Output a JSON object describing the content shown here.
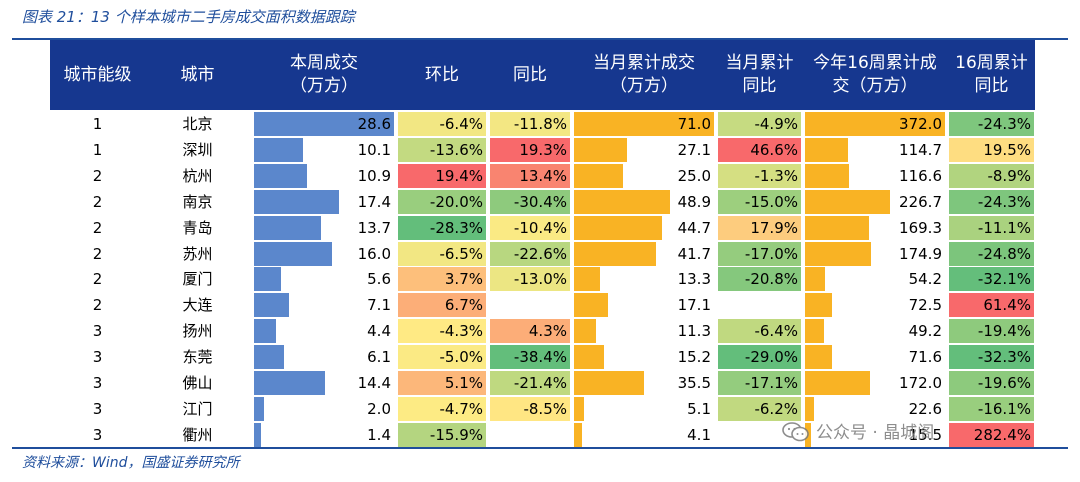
{
  "figure": {
    "title": "图表 21：13 个样本城市二手房成交面积数据跟踪",
    "source": "资料来源：Wind，国盛证券研究所",
    "watermark": "公众号 · 晶城阁"
  },
  "colors": {
    "header_bg": "#16378f",
    "rule": "#1f4e9c",
    "blue_bar": "#5b87cc",
    "orange_bar": "#f9b324",
    "heat_low": "#63be7b",
    "heat_mid": "#ffeb84",
    "heat_high": "#f8696b"
  },
  "chart_data": {
    "type": "table",
    "columns": [
      "城市能级",
      "城市",
      "本周成交\n（万方）",
      "环比",
      "同比",
      "当月累计成交\n（万方）",
      "当月累计\n同比",
      "今年16周累计成\n交（万方）",
      "16周累计\n同比"
    ],
    "rows": [
      {
        "tier": "1",
        "city": "北京",
        "week": "28.6",
        "wow": "-6.4%",
        "yoy": "-11.8%",
        "month": "71.0",
        "month_yoy": "-4.9%",
        "ytd": "372.0",
        "ytd_yoy": "-24.3%"
      },
      {
        "tier": "1",
        "city": "深圳",
        "week": "10.1",
        "wow": "-13.6%",
        "yoy": "19.3%",
        "month": "27.1",
        "month_yoy": "46.6%",
        "ytd": "114.7",
        "ytd_yoy": "19.5%"
      },
      {
        "tier": "2",
        "city": "杭州",
        "week": "10.9",
        "wow": "19.4%",
        "yoy": "13.4%",
        "month": "25.0",
        "month_yoy": "-1.3%",
        "ytd": "116.6",
        "ytd_yoy": "-8.9%"
      },
      {
        "tier": "2",
        "city": "南京",
        "week": "17.4",
        "wow": "-20.0%",
        "yoy": "-30.4%",
        "month": "48.9",
        "month_yoy": "-15.0%",
        "ytd": "226.7",
        "ytd_yoy": "-24.3%"
      },
      {
        "tier": "2",
        "city": "青岛",
        "week": "13.7",
        "wow": "-28.3%",
        "yoy": "-10.4%",
        "month": "44.7",
        "month_yoy": "17.9%",
        "ytd": "169.3",
        "ytd_yoy": "-11.1%"
      },
      {
        "tier": "2",
        "city": "苏州",
        "week": "16.0",
        "wow": "-6.5%",
        "yoy": "-22.6%",
        "month": "41.7",
        "month_yoy": "-17.0%",
        "ytd": "174.9",
        "ytd_yoy": "-24.8%"
      },
      {
        "tier": "2",
        "city": "厦门",
        "week": "5.6",
        "wow": "3.7%",
        "yoy": "-13.0%",
        "month": "13.3",
        "month_yoy": "-20.8%",
        "ytd": "54.2",
        "ytd_yoy": "-32.1%"
      },
      {
        "tier": "2",
        "city": "大连",
        "week": "7.1",
        "wow": "6.7%",
        "yoy": "",
        "month": "17.1",
        "month_yoy": "",
        "ytd": "72.5",
        "ytd_yoy": "61.4%"
      },
      {
        "tier": "3",
        "city": "扬州",
        "week": "4.4",
        "wow": "-4.3%",
        "yoy": "4.3%",
        "month": "11.3",
        "month_yoy": "-6.4%",
        "ytd": "49.2",
        "ytd_yoy": "-19.4%"
      },
      {
        "tier": "3",
        "city": "东莞",
        "week": "6.1",
        "wow": "-5.0%",
        "yoy": "-38.4%",
        "month": "15.2",
        "month_yoy": "-29.0%",
        "ytd": "71.6",
        "ytd_yoy": "-32.3%"
      },
      {
        "tier": "3",
        "city": "佛山",
        "week": "14.4",
        "wow": "5.1%",
        "yoy": "-21.4%",
        "month": "35.5",
        "month_yoy": "-17.1%",
        "ytd": "172.0",
        "ytd_yoy": "-19.6%"
      },
      {
        "tier": "3",
        "city": "江门",
        "week": "2.0",
        "wow": "-4.7%",
        "yoy": "-8.5%",
        "month": "5.1",
        "month_yoy": "-6.2%",
        "ytd": "22.6",
        "ytd_yoy": "-16.1%"
      },
      {
        "tier": "3",
        "city": "衢州",
        "week": "1.4",
        "wow": "-15.9%",
        "yoy": "",
        "month": "4.1",
        "month_yoy": "",
        "ytd": "15.5",
        "ytd_yoy": "282.4%"
      }
    ]
  }
}
